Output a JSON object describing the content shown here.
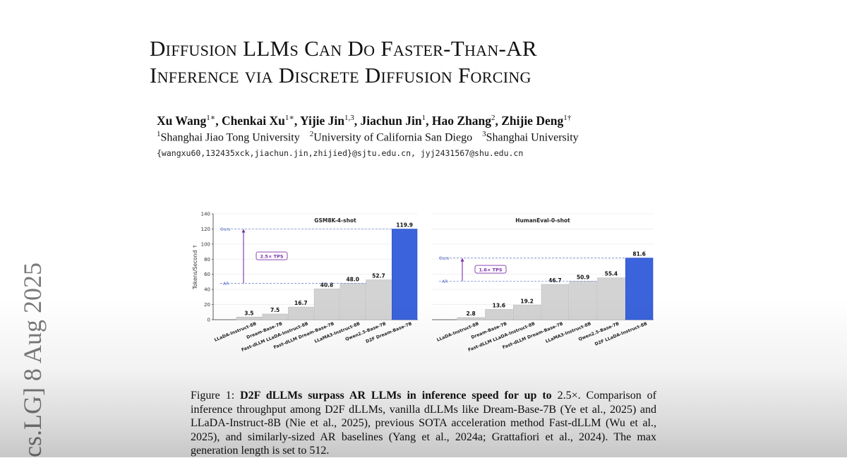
{
  "paper": {
    "title_line1": "Diffusion LLMs Can Do Faster-Than-AR",
    "title_line2": "Inference via Discrete Diffusion Forcing",
    "authors": [
      {
        "name": "Xu Wang",
        "sup": "1∗"
      },
      {
        "name": "Chenkai Xu",
        "sup": "1∗"
      },
      {
        "name": "Yijie Jin",
        "sup": "1,3"
      },
      {
        "name": "Jiachun Jin",
        "sup": "1"
      },
      {
        "name": "Hao Zhang",
        "sup": "2"
      },
      {
        "name": "Zhijie Deng",
        "sup": "1†"
      }
    ],
    "affiliations": [
      {
        "sup": "1",
        "name": "Shanghai Jiao Tong University"
      },
      {
        "sup": "2",
        "name": "University of California San Diego"
      },
      {
        "sup": "3",
        "name": "Shanghai University"
      }
    ],
    "emails": "{wangxu60,132435xck,jiachun.jin,zhijied}@sjtu.edu.cn, jyj2431567@shu.edu.cn",
    "arxiv_stamp": "cs.LG]  8 Aug 2025",
    "caption": {
      "label": "Figure 1:",
      "bold": "D2F dLLMs surpass AR LLMs in inference speed for up to",
      "speedup": "2.5×.",
      "text": "Comparison of inference throughput among D2F dLLMs, vanilla dLLMs like Dream-Base-7B (Ye et al., 2025) and LLaDA-Instruct-8B (Nie et al., 2025), previous SOTA acceleration method Fast-dLLM (Wu et al., 2025), and similarly-sized AR baselines (Yang et al., 2024a; Grattafiori et al., 2024). The max generation length is set to 512."
    }
  },
  "chart_data": {
    "type": "bar",
    "ylabel": "Tokens/Second ↑",
    "ylim": [
      0,
      140
    ],
    "yticks": [
      0,
      20,
      40,
      60,
      80,
      100,
      120,
      140
    ],
    "grid": true,
    "highlight_color": "#3b63db",
    "bar_color": "#d3d3d3",
    "annotation_color": "#7b2fa8",
    "panels": [
      {
        "title": "GSM8K-4-shot",
        "categories": [
          "LLaDA-Instruct-8B",
          "Dream-Base-7B",
          "Fast-dLLM LLaDA-Instruct-8B",
          "Fast-dLLM Dream-Base-7B",
          "LLaMA3-Instruct-8B",
          "Qwen2.5-Base-7B",
          "D2F Dream-Base-7B"
        ],
        "values": [
          3.5,
          7.5,
          16.7,
          40.8,
          48.0,
          52.7,
          119.9
        ],
        "value_labels": [
          "3.5",
          "7.5",
          "16.7",
          "40.8",
          "48.0",
          "52.7",
          "119.9"
        ],
        "highlight_index": 6,
        "ours_label": "Ours",
        "ar_label": "AR",
        "speedup_label": "2.5× TPS",
        "ours_value": 119.9,
        "ar_value": 48.0
      },
      {
        "title": "HumanEval-0-shot",
        "categories": [
          "LLaDA-Instruct-8B",
          "Dream-Base-7B",
          "Fast-dLLM LLaDA-Instruct-8B",
          "Fast-dLLM Dream-Base-7B",
          "LLaMA3-Instruct-8B",
          "Qwen2.5-Base-7B",
          "D2F LLaDA-Instruct-8B"
        ],
        "values": [
          2.8,
          13.6,
          19.2,
          46.7,
          50.9,
          55.4,
          81.6
        ],
        "value_labels": [
          "2.8",
          "13.6",
          "19.2",
          "46.7",
          "50.9",
          "55.4",
          "81.6"
        ],
        "highlight_index": 6,
        "ours_label": "Ours",
        "ar_label": "AR",
        "speedup_label": "1.6× TPS",
        "ours_value": 81.6,
        "ar_value": 50.9
      }
    ]
  }
}
